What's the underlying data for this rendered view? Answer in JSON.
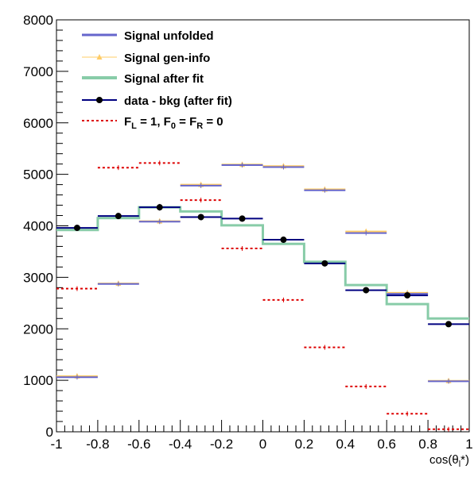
{
  "chart_data": {
    "type": "histogram",
    "xlabel": "cos(θ",
    "xlabel_sub": "l",
    "xlabel_end": "*)",
    "ylabel": "",
    "title": "",
    "xlim": [
      -1,
      1
    ],
    "ylim": [
      0,
      8000
    ],
    "x_ticks": [
      "-1",
      "-0.8",
      "-0.6",
      "-0.4",
      "-0.2",
      "0",
      "0.2",
      "0.4",
      "0.6",
      "0.8",
      "1"
    ],
    "y_ticks": [
      "0",
      "1000",
      "2000",
      "3000",
      "4000",
      "5000",
      "6000",
      "7000",
      "8000"
    ],
    "bin_edges": [
      -1.0,
      -0.8,
      -0.6,
      -0.4,
      -0.2,
      0.0,
      0.2,
      0.4,
      0.6,
      0.8,
      1.0
    ],
    "legend_position": "top-left",
    "series": [
      {
        "name": "Signal unfolded",
        "style": "markers-hbar",
        "color": "#6666cc",
        "values": [
          1060,
          2870,
          4080,
          4780,
          5180,
          5140,
          4690,
          3860,
          2680,
          980
        ]
      },
      {
        "name": "Signal gen-info",
        "style": "triangle-markers",
        "color": "#ffcc66",
        "values": [
          1080,
          2880,
          4090,
          4800,
          5190,
          5160,
          4710,
          3890,
          2700,
          990
        ]
      },
      {
        "name": "Signal after fit",
        "style": "step-line",
        "color": "#88cca8",
        "values": [
          3920,
          4150,
          4360,
          4280,
          4010,
          3650,
          3300,
          2850,
          2480,
          2200
        ]
      },
      {
        "name": "data - bkg (after fit)",
        "style": "points-errors",
        "color": "#000080",
        "values": [
          3960,
          4190,
          4360,
          4170,
          4140,
          3730,
          3270,
          2750,
          2650,
          2090
        ],
        "errors": [
          60,
          60,
          65,
          60,
          60,
          60,
          55,
          55,
          55,
          50
        ]
      },
      {
        "name_parts": [
          "F",
          "L",
          " = 1, F",
          "0",
          " = F",
          "R",
          " = 0"
        ],
        "style": "dashed-hbar",
        "color": "#dd0000",
        "values": [
          2780,
          5130,
          5220,
          4500,
          3560,
          2560,
          1640,
          880,
          350,
          50
        ]
      }
    ]
  }
}
